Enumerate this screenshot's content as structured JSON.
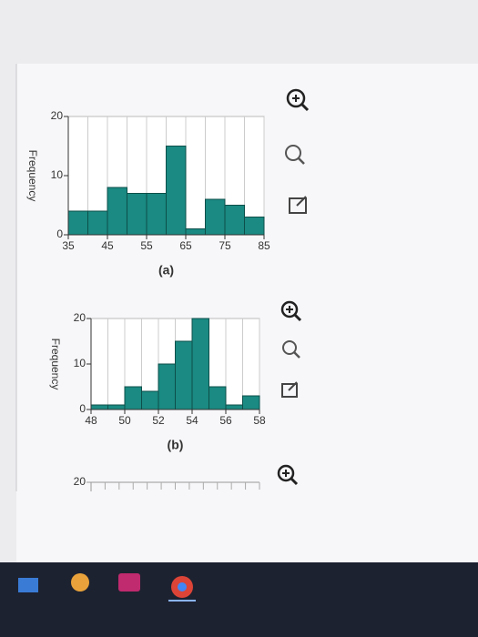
{
  "chart_data": [
    {
      "type": "histogram",
      "ylabel": "Frequency",
      "caption": "(a)",
      "bins": [
        35,
        40,
        45,
        50,
        55,
        60,
        65,
        70,
        75,
        80,
        85
      ],
      "values": [
        4,
        4,
        8,
        7,
        7,
        15,
        1,
        6,
        5,
        3
      ],
      "color": "#1a8a82",
      "xlim": [
        35,
        85
      ],
      "xticks": [
        35,
        45,
        55,
        65,
        75,
        85
      ],
      "ylim": [
        0,
        20
      ],
      "yticks": [
        0,
        10,
        20
      ],
      "grid": true
    },
    {
      "type": "histogram",
      "ylabel": "Frequency",
      "caption": "(b)",
      "bins": [
        48,
        49,
        50,
        51,
        52,
        53,
        54,
        55,
        56,
        57,
        58
      ],
      "values": [
        1,
        1,
        5,
        4,
        10,
        15,
        20,
        5,
        1,
        3
      ],
      "color": "#1a8a82",
      "xlim": [
        48,
        58
      ],
      "xticks": [
        48,
        50,
        52,
        54,
        56,
        58
      ],
      "ylim": [
        0,
        20
      ],
      "yticks": [
        0,
        10,
        20
      ],
      "grid": true
    },
    {
      "type": "partial",
      "yticks": [
        20
      ]
    }
  ]
}
